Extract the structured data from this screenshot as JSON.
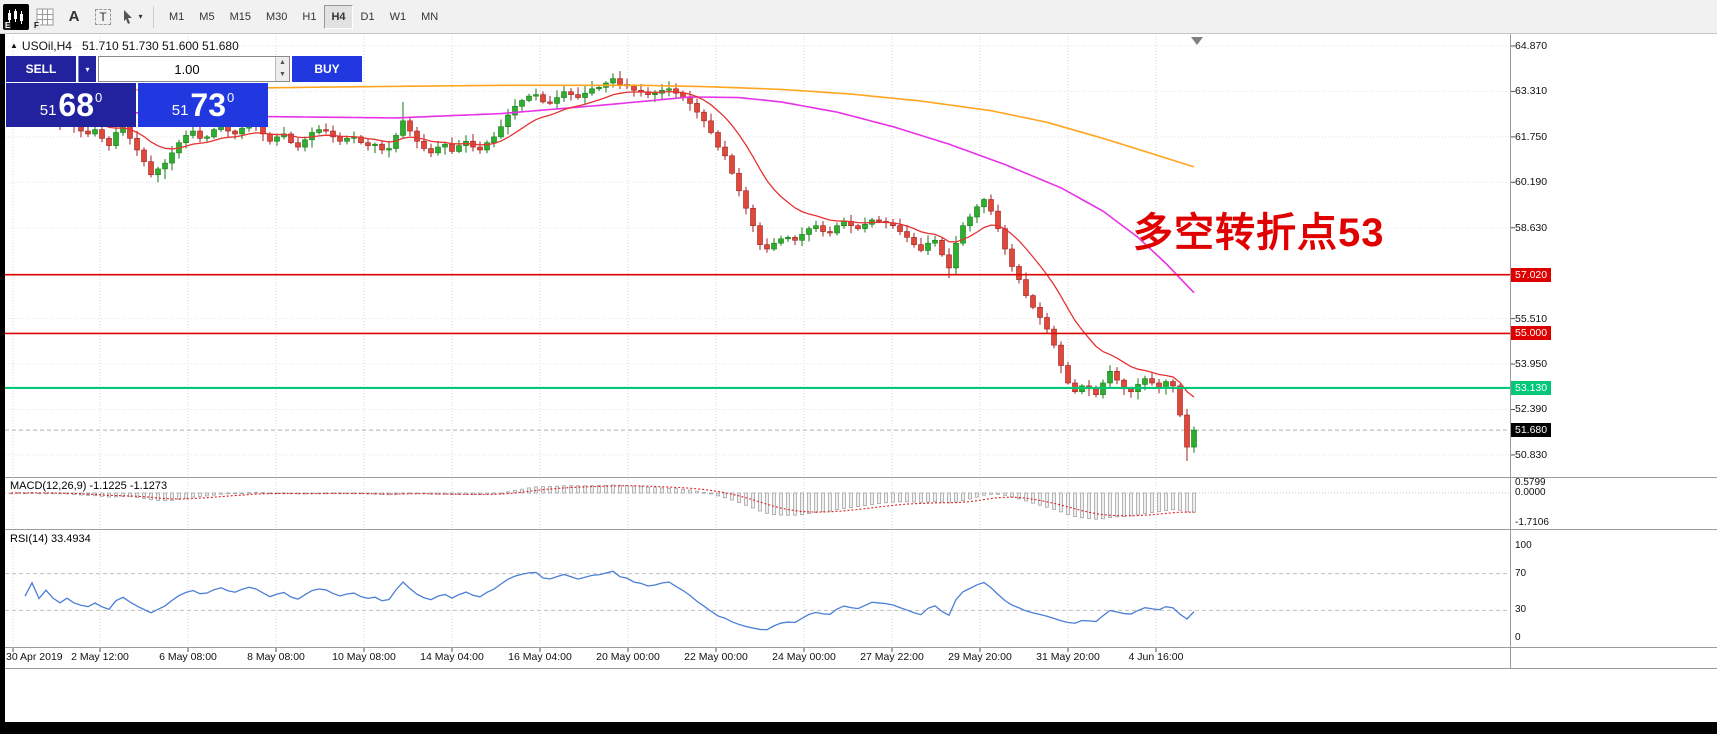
{
  "colors": {
    "sell_navy": "#22229e",
    "buy_blue": "#2138e0",
    "up_candle": "#2eae2e",
    "down_candle": "#e0483a",
    "up_candle_border": "#157a15",
    "down_candle_border": "#9c2121",
    "ma_fast_red": "#e63232",
    "ma_mid_magenta": "#e832e8",
    "ma_slow_orange": "#ffa520",
    "hline_red": "#dd0000",
    "hline_green": "#00c878",
    "current_price_black": "#000000",
    "rsi_blue": "#4b7fd6",
    "macd_signal_red": "#dd2222",
    "annotation_red": "#e00000"
  },
  "toolbar": {
    "hint_e": "E",
    "hint_f": "F",
    "text_tool_label": "A",
    "label_tool_label": "T",
    "timeframes": [
      "M1",
      "M5",
      "M15",
      "M30",
      "H1",
      "H4",
      "D1",
      "W1",
      "MN"
    ],
    "active_timeframe": "H4"
  },
  "header": {
    "expand_marker": "▲",
    "symbol": "USOil,H4",
    "ohlc": "51.710 51.730 51.600 51.680"
  },
  "trade_panel": {
    "sell_label": "SELL",
    "buy_label": "BUY",
    "lot_value": "1.00",
    "sell_price": {
      "small": "51",
      "big": "68",
      "sup": "0"
    },
    "buy_price": {
      "small": "51",
      "big": "73",
      "sup": "0"
    }
  },
  "annotation": {
    "text": "多空转折点53"
  },
  "price_axis": {
    "labels": [
      "64.870",
      "63.310",
      "61.750",
      "60.190",
      "58.630",
      "55.510",
      "53.950",
      "52.390",
      "50.830"
    ],
    "badges": [
      {
        "value": "57.020",
        "price": 57.02,
        "bg": "#dd0000"
      },
      {
        "value": "55.000",
        "price": 55.0,
        "bg": "#dd0000"
      },
      {
        "value": "53.130",
        "price": 53.13,
        "bg": "#00c878"
      },
      {
        "value": "51.680",
        "price": 51.68,
        "bg": "#000000"
      }
    ]
  },
  "hlines": [
    {
      "price": 57.02,
      "color": "#dd0000",
      "width": 1.6
    },
    {
      "price": 55.0,
      "color": "#dd0000",
      "width": 1.6
    },
    {
      "price": 53.13,
      "color": "#00c878",
      "width": 2.2
    }
  ],
  "macd_panel": {
    "label": "MACD(12,26,9) -1.1225 -1.1273",
    "fast": 12,
    "slow": 26,
    "signal": 9,
    "axis_labels": [
      "0.5799",
      "0.0000",
      "-1.7106"
    ]
  },
  "rsi_panel": {
    "label": "RSI(14) 33.4934",
    "period": 14,
    "axis_labels": [
      "100",
      "70",
      "30",
      "0"
    ]
  },
  "time_axis": [
    "30 Apr 2019",
    "2 May 12:00",
    "6 May 08:00",
    "8 May 08:00",
    "10 May 08:00",
    "14 May 04:00",
    "16 May 04:00",
    "20 May 00:00",
    "22 May 00:00",
    "24 May 00:00",
    "27 May 22:00",
    "29 May 20:00",
    "31 May 20:00",
    "4 Jun 16:00"
  ],
  "chart_data": {
    "type": "candlestick",
    "symbol": "USOil",
    "timeframe": "H4",
    "visible_price_range": [
      50.07,
      65.28
    ],
    "closes": [
      62.6,
      62.85,
      62.55,
      62.75,
      62.45,
      62.65,
      62.4,
      62.2,
      62.35,
      62.1,
      61.95,
      61.85,
      62.0,
      61.7,
      61.45,
      61.9,
      62.1,
      61.7,
      61.3,
      60.9,
      60.45,
      60.65,
      60.85,
      61.2,
      61.55,
      61.8,
      61.95,
      61.7,
      61.75,
      62.0,
      62.15,
      61.95,
      61.85,
      62.05,
      62.2,
      62.1,
      61.85,
      61.6,
      61.75,
      61.85,
      61.55,
      61.4,
      61.65,
      61.9,
      62.0,
      61.95,
      61.75,
      61.6,
      61.7,
      61.75,
      61.55,
      61.45,
      61.5,
      61.3,
      61.35,
      61.8,
      62.3,
      61.95,
      61.6,
      61.35,
      61.2,
      61.4,
      61.5,
      61.25,
      61.45,
      61.6,
      61.4,
      61.3,
      61.55,
      61.75,
      62.1,
      62.5,
      62.8,
      63.0,
      63.15,
      63.2,
      62.95,
      62.9,
      63.1,
      63.3,
      63.2,
      63.1,
      63.25,
      63.4,
      63.45,
      63.6,
      63.75,
      63.55,
      63.5,
      63.35,
      63.3,
      63.2,
      63.25,
      63.35,
      63.4,
      63.25,
      63.1,
      62.9,
      62.6,
      62.3,
      61.9,
      61.4,
      61.1,
      60.5,
      59.9,
      59.3,
      58.7,
      58.05,
      57.9,
      58.1,
      58.25,
      58.3,
      58.2,
      58.4,
      58.6,
      58.7,
      58.5,
      58.45,
      58.7,
      58.85,
      58.7,
      58.6,
      58.75,
      58.9,
      58.85,
      58.8,
      58.7,
      58.5,
      58.3,
      58.05,
      57.85,
      58.1,
      58.2,
      57.7,
      57.25,
      58.1,
      58.7,
      59.0,
      59.35,
      59.6,
      59.2,
      58.6,
      57.9,
      57.3,
      56.85,
      56.3,
      55.9,
      55.55,
      55.15,
      54.6,
      53.9,
      53.3,
      53.0,
      53.2,
      53.1,
      52.9,
      53.3,
      53.7,
      53.4,
      53.1,
      53.0,
      53.25,
      53.45,
      53.3,
      53.15,
      53.35,
      53.2,
      52.2,
      51.1,
      51.68
    ],
    "high_overrides": {
      "56": 62.95,
      "86": 63.93
    },
    "low_overrides": {
      "22": 60.3,
      "134": 56.9,
      "168": 50.62
    },
    "ma_fast_period": 13,
    "ma_mid_anchors": [
      [
        0,
        62.85
      ],
      [
        15,
        62.6
      ],
      [
        35,
        62.45
      ],
      [
        55,
        62.4
      ],
      [
        70,
        62.55
      ],
      [
        85,
        62.85
      ],
      [
        97,
        63.12
      ],
      [
        104,
        63.1
      ],
      [
        110,
        62.95
      ],
      [
        118,
        62.6
      ],
      [
        126,
        62.1
      ],
      [
        134,
        61.5
      ],
      [
        142,
        60.8
      ],
      [
        150,
        60.0
      ],
      [
        156,
        59.2
      ],
      [
        161,
        58.3
      ],
      [
        165,
        57.4
      ],
      [
        169,
        56.4
      ]
    ],
    "ma_slow_anchors": [
      [
        0,
        63.3
      ],
      [
        20,
        63.38
      ],
      [
        45,
        63.46
      ],
      [
        70,
        63.52
      ],
      [
        90,
        63.52
      ],
      [
        100,
        63.47
      ],
      [
        110,
        63.38
      ],
      [
        120,
        63.22
      ],
      [
        130,
        62.98
      ],
      [
        140,
        62.65
      ],
      [
        148,
        62.25
      ],
      [
        156,
        61.7
      ],
      [
        162,
        61.25
      ],
      [
        169,
        60.72
      ]
    ]
  }
}
